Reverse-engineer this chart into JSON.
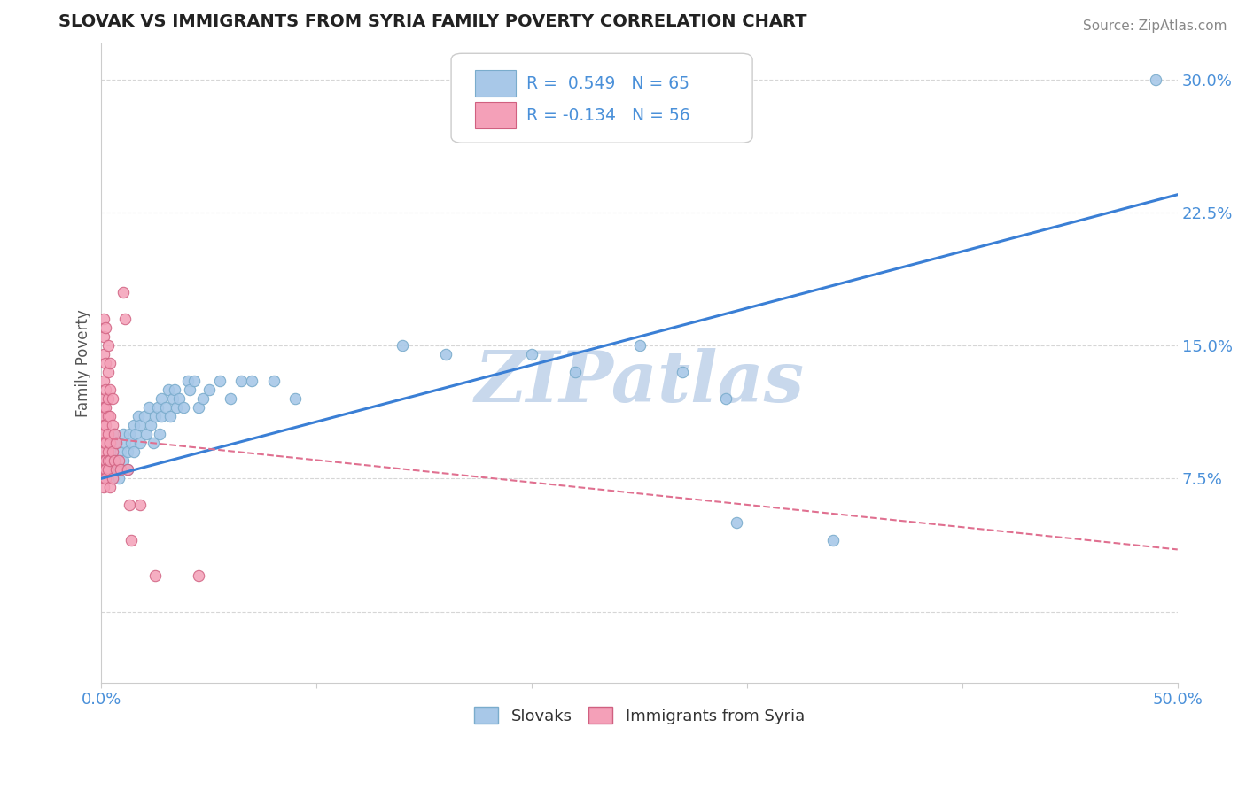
{
  "title": "SLOVAK VS IMMIGRANTS FROM SYRIA FAMILY POVERTY CORRELATION CHART",
  "source": "Source: ZipAtlas.com",
  "ylabel": "Family Poverty",
  "xlim": [
    0.0,
    0.5
  ],
  "ylim": [
    -0.04,
    0.32
  ],
  "ylabel_ticks": [
    0.0,
    0.075,
    0.15,
    0.225,
    0.3
  ],
  "ylabel_labels": [
    "",
    "7.5%",
    "15.0%",
    "22.5%",
    "30.0%"
  ],
  "legend_r": [
    {
      "r": "0.549",
      "n": "65",
      "color": "#4a90d9"
    },
    {
      "r": "-0.134",
      "n": "56",
      "color": "#d45070"
    }
  ],
  "blue_scatter": {
    "color": "#a8c8e8",
    "edge_color": "#7aaccc",
    "points": [
      [
        0.002,
        0.085
      ],
      [
        0.003,
        0.075
      ],
      [
        0.004,
        0.095
      ],
      [
        0.004,
        0.08
      ],
      [
        0.005,
        0.09
      ],
      [
        0.005,
        0.075
      ],
      [
        0.006,
        0.1
      ],
      [
        0.006,
        0.085
      ],
      [
        0.007,
        0.095
      ],
      [
        0.008,
        0.08
      ],
      [
        0.008,
        0.075
      ],
      [
        0.009,
        0.09
      ],
      [
        0.01,
        0.1
      ],
      [
        0.01,
        0.085
      ],
      [
        0.011,
        0.095
      ],
      [
        0.012,
        0.09
      ],
      [
        0.012,
        0.08
      ],
      [
        0.013,
        0.1
      ],
      [
        0.014,
        0.095
      ],
      [
        0.015,
        0.09
      ],
      [
        0.015,
        0.105
      ],
      [
        0.016,
        0.1
      ],
      [
        0.017,
        0.11
      ],
      [
        0.018,
        0.095
      ],
      [
        0.018,
        0.105
      ],
      [
        0.02,
        0.11
      ],
      [
        0.021,
        0.1
      ],
      [
        0.022,
        0.115
      ],
      [
        0.023,
        0.105
      ],
      [
        0.024,
        0.095
      ],
      [
        0.025,
        0.11
      ],
      [
        0.026,
        0.115
      ],
      [
        0.027,
        0.1
      ],
      [
        0.028,
        0.12
      ],
      [
        0.028,
        0.11
      ],
      [
        0.03,
        0.115
      ],
      [
        0.031,
        0.125
      ],
      [
        0.032,
        0.11
      ],
      [
        0.033,
        0.12
      ],
      [
        0.034,
        0.125
      ],
      [
        0.035,
        0.115
      ],
      [
        0.036,
        0.12
      ],
      [
        0.038,
        0.115
      ],
      [
        0.04,
        0.13
      ],
      [
        0.041,
        0.125
      ],
      [
        0.043,
        0.13
      ],
      [
        0.045,
        0.115
      ],
      [
        0.047,
        0.12
      ],
      [
        0.05,
        0.125
      ],
      [
        0.055,
        0.13
      ],
      [
        0.06,
        0.12
      ],
      [
        0.065,
        0.13
      ],
      [
        0.07,
        0.13
      ],
      [
        0.08,
        0.13
      ],
      [
        0.09,
        0.12
      ],
      [
        0.14,
        0.15
      ],
      [
        0.16,
        0.145
      ],
      [
        0.2,
        0.145
      ],
      [
        0.22,
        0.135
      ],
      [
        0.25,
        0.15
      ],
      [
        0.27,
        0.135
      ],
      [
        0.29,
        0.12
      ],
      [
        0.295,
        0.05
      ],
      [
        0.34,
        0.04
      ],
      [
        0.49,
        0.3
      ]
    ]
  },
  "pink_scatter": {
    "color": "#f4a0b8",
    "edge_color": "#d06080",
    "points": [
      [
        0.001,
        0.165
      ],
      [
        0.001,
        0.155
      ],
      [
        0.001,
        0.145
      ],
      [
        0.001,
        0.13
      ],
      [
        0.001,
        0.12
      ],
      [
        0.001,
        0.115
      ],
      [
        0.001,
        0.11
      ],
      [
        0.001,
        0.105
      ],
      [
        0.001,
        0.1
      ],
      [
        0.001,
        0.095
      ],
      [
        0.001,
        0.09
      ],
      [
        0.001,
        0.085
      ],
      [
        0.001,
        0.08
      ],
      [
        0.001,
        0.075
      ],
      [
        0.001,
        0.07
      ],
      [
        0.002,
        0.16
      ],
      [
        0.002,
        0.14
      ],
      [
        0.002,
        0.125
      ],
      [
        0.002,
        0.115
      ],
      [
        0.002,
        0.105
      ],
      [
        0.002,
        0.095
      ],
      [
        0.002,
        0.085
      ],
      [
        0.002,
        0.08
      ],
      [
        0.002,
        0.075
      ],
      [
        0.003,
        0.15
      ],
      [
        0.003,
        0.135
      ],
      [
        0.003,
        0.12
      ],
      [
        0.003,
        0.11
      ],
      [
        0.003,
        0.1
      ],
      [
        0.003,
        0.09
      ],
      [
        0.003,
        0.085
      ],
      [
        0.003,
        0.08
      ],
      [
        0.004,
        0.14
      ],
      [
        0.004,
        0.125
      ],
      [
        0.004,
        0.11
      ],
      [
        0.004,
        0.095
      ],
      [
        0.004,
        0.085
      ],
      [
        0.004,
        0.07
      ],
      [
        0.005,
        0.12
      ],
      [
        0.005,
        0.105
      ],
      [
        0.005,
        0.09
      ],
      [
        0.005,
        0.075
      ],
      [
        0.006,
        0.1
      ],
      [
        0.006,
        0.085
      ],
      [
        0.007,
        0.095
      ],
      [
        0.007,
        0.08
      ],
      [
        0.008,
        0.085
      ],
      [
        0.009,
        0.08
      ],
      [
        0.01,
        0.18
      ],
      [
        0.011,
        0.165
      ],
      [
        0.012,
        0.08
      ],
      [
        0.013,
        0.06
      ],
      [
        0.014,
        0.04
      ],
      [
        0.018,
        0.06
      ],
      [
        0.025,
        0.02
      ],
      [
        0.045,
        0.02
      ]
    ]
  },
  "blue_line": {
    "color": "#3a7fd5",
    "x0": 0.0,
    "y0": 0.075,
    "x1": 0.5,
    "y1": 0.235
  },
  "pink_line": {
    "color": "#e07090",
    "style": "dashed",
    "x0": 0.0,
    "y0": 0.098,
    "x1": 0.5,
    "y1": 0.035
  },
  "watermark": "ZIPatlas",
  "watermark_color": "#c8d8ec",
  "background_color": "#ffffff",
  "grid_color": "#cccccc",
  "title_color": "#222222",
  "axis_color": "#4a90d9"
}
